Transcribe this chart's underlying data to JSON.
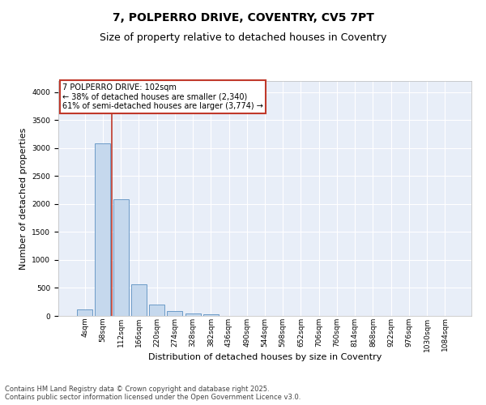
{
  "title": "7, POLPERRO DRIVE, COVENTRY, CV5 7PT",
  "subtitle": "Size of property relative to detached houses in Coventry",
  "xlabel": "Distribution of detached houses by size in Coventry",
  "ylabel": "Number of detached properties",
  "categories": [
    "4sqm",
    "58sqm",
    "112sqm",
    "166sqm",
    "220sqm",
    "274sqm",
    "328sqm",
    "382sqm",
    "436sqm",
    "490sqm",
    "544sqm",
    "598sqm",
    "652sqm",
    "706sqm",
    "760sqm",
    "814sqm",
    "868sqm",
    "922sqm",
    "976sqm",
    "1030sqm",
    "1084sqm"
  ],
  "values": [
    120,
    3080,
    2080,
    560,
    210,
    80,
    40,
    30,
    0,
    0,
    0,
    0,
    0,
    0,
    0,
    0,
    0,
    0,
    0,
    0,
    0
  ],
  "bar_color": "#c5d8ed",
  "bar_edge_color": "#5a8fc0",
  "vline_x": 1.5,
  "vline_color": "#c0392b",
  "annotation_box_text": "7 POLPERRO DRIVE: 102sqm\n← 38% of detached houses are smaller (2,340)\n61% of semi-detached houses are larger (3,774) →",
  "annotation_box_color": "#c0392b",
  "ylim": [
    0,
    4200
  ],
  "yticks": [
    0,
    500,
    1000,
    1500,
    2000,
    2500,
    3000,
    3500,
    4000
  ],
  "background_color": "#e8eef8",
  "grid_color": "#ffffff",
  "footer_text": "Contains HM Land Registry data © Crown copyright and database right 2025.\nContains public sector information licensed under the Open Government Licence v3.0.",
  "title_fontsize": 10,
  "subtitle_fontsize": 9,
  "xlabel_fontsize": 8,
  "ylabel_fontsize": 8,
  "tick_fontsize": 6.5,
  "annotation_fontsize": 7,
  "footer_fontsize": 6
}
